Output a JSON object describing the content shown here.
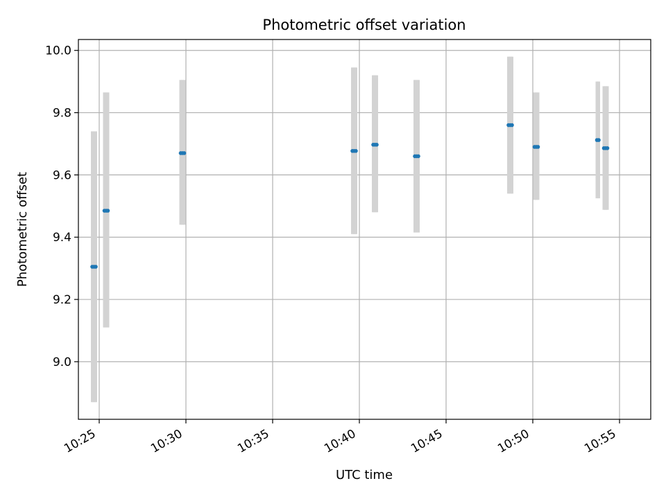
{
  "chart_data": {
    "type": "scatter",
    "title": "Photometric offset variation",
    "xlabel": "UTC time",
    "ylabel": "Photometric offset",
    "x_ticks": [
      "10:25",
      "10:30",
      "10:35",
      "10:40",
      "10:45",
      "10:50",
      "10:55"
    ],
    "y_ticks": [
      "9.0",
      "9.2",
      "9.4",
      "9.6",
      "9.8",
      "10.0"
    ],
    "xlim": [
      "10:23:48",
      "10:56:48"
    ],
    "ylim": [
      8.815,
      10.035
    ],
    "grid": true,
    "colors": {
      "points": "#1f77b4",
      "error_bars": "#d3d3d3",
      "grid": "#b0b0b0"
    },
    "points": [
      {
        "time": "10:24:36",
        "value": 9.305,
        "low": 8.87,
        "high": 9.74
      },
      {
        "time": "10:24:42",
        "value": 9.305,
        "low": 8.87,
        "high": 9.74
      },
      {
        "time": "10:24:48",
        "value": 9.305,
        "low": 8.87,
        "high": 9.74
      },
      {
        "time": "10:25:18",
        "value": 9.485,
        "low": 9.11,
        "high": 9.865
      },
      {
        "time": "10:25:24",
        "value": 9.485,
        "low": 9.11,
        "high": 9.865
      },
      {
        "time": "10:25:30",
        "value": 9.485,
        "low": 9.11,
        "high": 9.865
      },
      {
        "time": "10:29:42",
        "value": 9.67,
        "low": 9.44,
        "high": 9.905
      },
      {
        "time": "10:29:48",
        "value": 9.67,
        "low": 9.44,
        "high": 9.905
      },
      {
        "time": "10:29:54",
        "value": 9.67,
        "low": 9.44,
        "high": 9.905
      },
      {
        "time": "10:39:36",
        "value": 9.677,
        "low": 9.41,
        "high": 9.945
      },
      {
        "time": "10:39:42",
        "value": 9.677,
        "low": 9.41,
        "high": 9.945
      },
      {
        "time": "10:39:48",
        "value": 9.677,
        "low": 9.41,
        "high": 9.945
      },
      {
        "time": "10:40:48",
        "value": 9.697,
        "low": 9.48,
        "high": 9.92
      },
      {
        "time": "10:40:54",
        "value": 9.697,
        "low": 9.48,
        "high": 9.92
      },
      {
        "time": "10:41:00",
        "value": 9.697,
        "low": 9.48,
        "high": 9.92
      },
      {
        "time": "10:43:12",
        "value": 9.66,
        "low": 9.415,
        "high": 9.905
      },
      {
        "time": "10:43:18",
        "value": 9.66,
        "low": 9.415,
        "high": 9.905
      },
      {
        "time": "10:43:24",
        "value": 9.66,
        "low": 9.415,
        "high": 9.905
      },
      {
        "time": "10:48:36",
        "value": 9.76,
        "low": 9.54,
        "high": 9.98
      },
      {
        "time": "10:48:42",
        "value": 9.76,
        "low": 9.54,
        "high": 9.98
      },
      {
        "time": "10:48:48",
        "value": 9.76,
        "low": 9.54,
        "high": 9.98
      },
      {
        "time": "10:50:06",
        "value": 9.69,
        "low": 9.52,
        "high": 9.865
      },
      {
        "time": "10:50:12",
        "value": 9.69,
        "low": 9.52,
        "high": 9.865
      },
      {
        "time": "10:50:18",
        "value": 9.69,
        "low": 9.52,
        "high": 9.865
      },
      {
        "time": "10:53:42",
        "value": 9.712,
        "low": 9.525,
        "high": 9.9
      },
      {
        "time": "10:53:48",
        "value": 9.712,
        "low": 9.525,
        "high": 9.9
      },
      {
        "time": "10:54:06",
        "value": 9.686,
        "low": 9.488,
        "high": 9.885
      },
      {
        "time": "10:54:12",
        "value": 9.686,
        "low": 9.488,
        "high": 9.885
      },
      {
        "time": "10:54:18",
        "value": 9.686,
        "low": 9.488,
        "high": 9.885
      }
    ]
  }
}
